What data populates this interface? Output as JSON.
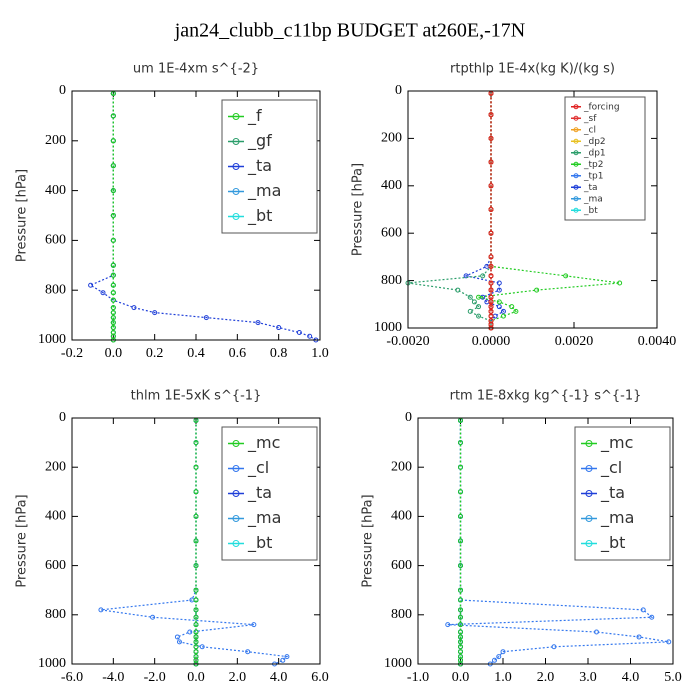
{
  "title": "jan24_clubb_c11bp  BUDGET at260E,-17N",
  "chart_data": [
    {
      "type": "line",
      "title": "um  1E-4xm s^{-2}",
      "y_label": "Pressure [hPa]",
      "y_inverted": true,
      "legend": "upper right",
      "xlim": [
        -0.2,
        1.0
      ],
      "xticks": [
        -0.2,
        {
          "value": 0,
          "label": "0.0"
        },
        0.2,
        0.4,
        0.6,
        0.8,
        {
          "value": 1,
          "label": "1.0"
        }
      ],
      "ylim": [
        0,
        1000
      ],
      "yticks": [
        0,
        200,
        400,
        600,
        800,
        1000
      ],
      "y": [
        10,
        100,
        200,
        300,
        400,
        500,
        600,
        700,
        740,
        780,
        810,
        840,
        870,
        890,
        910,
        930,
        950,
        970,
        985,
        1000
      ],
      "series": [
        {
          "name": "_f",
          "color": "#22cc22",
          "values": [
            0,
            0,
            0,
            0,
            0,
            0,
            0,
            0,
            0,
            0,
            0,
            0,
            0,
            0,
            0,
            0,
            0,
            0,
            0,
            0
          ]
        },
        {
          "name": "_gf",
          "color": "#2a9d6a",
          "values": [
            0,
            0,
            0,
            0,
            0,
            0,
            0,
            0,
            0,
            0,
            0,
            0,
            0,
            0,
            0,
            0,
            0,
            0,
            0,
            0
          ]
        },
        {
          "name": "_ta",
          "color": "#1f3fd8",
          "values": [
            0,
            0,
            0,
            0,
            0,
            0,
            0,
            0,
            0,
            -0.11,
            -0.05,
            0.0,
            0.1,
            0.2,
            0.45,
            0.7,
            0.8,
            0.9,
            0.95,
            0.98
          ]
        },
        {
          "name": "_ma",
          "color": "#3399dd",
          "values": [
            0,
            0,
            0,
            0,
            0,
            0,
            0,
            0,
            0,
            0,
            0,
            0,
            0,
            0,
            0,
            0,
            0,
            0,
            0,
            0
          ]
        },
        {
          "name": "_bt",
          "color": "#22dddd",
          "values": [
            0,
            0,
            0,
            0,
            0,
            0,
            0,
            0,
            0,
            0,
            0,
            0,
            0,
            0,
            0,
            0,
            0,
            0,
            0,
            0
          ]
        }
      ]
    },
    {
      "type": "line",
      "title": "rtpthlp  1E-4x(kg K)/(kg s)",
      "y_label": "Pressure [hPa]",
      "y_inverted": true,
      "legend": "upper right",
      "xlim": [
        -0.002,
        0.004
      ],
      "xticks": [
        {
          "value": -0.002,
          "label": "-0.0020"
        },
        {
          "value": 0,
          "label": "0.0000"
        },
        {
          "value": 0.002,
          "label": "0.0020"
        },
        {
          "value": 0.004,
          "label": "0.0040"
        }
      ],
      "ylim": [
        0,
        1000
      ],
      "yticks": [
        0,
        200,
        400,
        600,
        800,
        1000
      ],
      "y": [
        10,
        100,
        200,
        300,
        400,
        500,
        600,
        700,
        740,
        780,
        810,
        840,
        870,
        890,
        910,
        930,
        950,
        970,
        985,
        1000
      ],
      "series": [
        {
          "name": "_forcing",
          "color": "#e02020",
          "values": [
            0,
            0,
            0,
            0,
            0,
            0,
            0,
            0,
            0,
            0,
            0,
            0,
            0,
            0,
            0,
            0,
            0,
            0,
            0,
            0
          ]
        },
        {
          "name": "_sf",
          "color": "#e03030",
          "values": [
            0,
            0,
            0,
            0,
            0,
            0,
            0,
            0,
            0,
            0,
            0,
            0,
            0,
            0,
            0,
            0,
            0,
            0,
            0,
            0
          ]
        },
        {
          "name": "_cl",
          "color": "#f0a020",
          "values": [
            0,
            0,
            0,
            0,
            0,
            0,
            0,
            0,
            0,
            0,
            0,
            0,
            0,
            0,
            0,
            0,
            0,
            0,
            0,
            0
          ]
        },
        {
          "name": "_dp2",
          "color": "#e8c020",
          "values": [
            0,
            0,
            0,
            0,
            0,
            0,
            0,
            0,
            0,
            0,
            0,
            0,
            0,
            0,
            0,
            0,
            0,
            0,
            0,
            0
          ]
        },
        {
          "name": "_dp1",
          "color": "#2a9d6a",
          "values": [
            0,
            0,
            0,
            0,
            0,
            0,
            0,
            0,
            0,
            -0.0002,
            -0.002,
            -0.0008,
            -0.0005,
            -0.0004,
            -0.0003,
            -0.0005,
            -0.0003,
            0,
            0,
            0
          ]
        },
        {
          "name": "_tp2",
          "color": "#22cc22",
          "values": [
            0,
            0,
            0,
            0,
            0,
            0,
            0,
            0,
            0,
            0.0018,
            0.0031,
            0.0011,
            -0.0003,
            0.0002,
            0.0005,
            0.0006,
            0.0003,
            0,
            0,
            0
          ]
        },
        {
          "name": "_tp1",
          "color": "#3377ee",
          "values": [
            0,
            0,
            0,
            0,
            0,
            0,
            0,
            0,
            0,
            0,
            0,
            0,
            0,
            0,
            0,
            0,
            0,
            0,
            0,
            0
          ]
        },
        {
          "name": "_ta",
          "color": "#1f3fd8",
          "values": [
            0,
            0,
            0,
            0,
            0,
            0,
            0,
            0,
            -0.0001,
            -0.0006,
            0.0002,
            0.0002,
            -0.0002,
            -0.0001,
            0.0002,
            0.0003,
            0.0001,
            0,
            0,
            0
          ]
        },
        {
          "name": "_ma",
          "color": "#3399dd",
          "values": [
            0,
            0,
            0,
            0,
            0,
            0,
            0,
            0,
            0,
            0,
            0,
            0,
            0,
            0,
            0,
            0,
            0,
            0,
            0,
            0
          ]
        },
        {
          "name": "_bt",
          "color": "#22dddd",
          "values": [
            0,
            0,
            0,
            0,
            0,
            0,
            0,
            0,
            0,
            0,
            0,
            0,
            0,
            0,
            0,
            0,
            0,
            0,
            0,
            0
          ]
        }
      ]
    },
    {
      "type": "line",
      "title": "thlm  1E-5xK s^{-1}",
      "y_label": "Pressure [hPa]",
      "y_inverted": true,
      "legend": "upper right",
      "xlim": [
        -6,
        6
      ],
      "xticks": [
        {
          "value": -6,
          "label": "-6.0"
        },
        {
          "value": -4,
          "label": "-4.0"
        },
        {
          "value": -2,
          "label": "-2.0"
        },
        {
          "value": 0,
          "label": "0.0"
        },
        {
          "value": 2,
          "label": "2.0"
        },
        {
          "value": 4,
          "label": "4.0"
        },
        {
          "value": 6,
          "label": "6.0"
        }
      ],
      "ylim": [
        0,
        1000
      ],
      "yticks": [
        0,
        200,
        400,
        600,
        800,
        1000
      ],
      "y": [
        10,
        100,
        200,
        300,
        400,
        500,
        600,
        700,
        740,
        780,
        810,
        840,
        870,
        890,
        910,
        930,
        950,
        970,
        985,
        1000
      ],
      "series": [
        {
          "name": "_mc",
          "color": "#22cc22",
          "values": [
            0,
            0,
            0,
            0,
            0,
            0,
            0,
            0,
            0,
            0,
            0,
            0,
            0,
            0,
            0,
            0,
            0,
            0,
            0,
            0
          ]
        },
        {
          "name": "_cl",
          "color": "#3377ee",
          "values": [
            0,
            0,
            0,
            0,
            0,
            0,
            0,
            0,
            -0.2,
            -4.6,
            -2.1,
            2.8,
            -0.3,
            -0.9,
            -0.8,
            0.3,
            2.5,
            4.4,
            4.2,
            3.8
          ]
        },
        {
          "name": "_ta",
          "color": "#1f3fd8",
          "values": [
            0,
            0,
            0,
            0,
            0,
            0,
            0,
            0,
            0,
            0,
            0,
            0,
            0,
            0,
            0,
            0,
            0,
            0,
            0,
            0
          ]
        },
        {
          "name": "_ma",
          "color": "#3399dd",
          "values": [
            0,
            0,
            0,
            0,
            0,
            0,
            0,
            0,
            0,
            0,
            0,
            0,
            0,
            0,
            0,
            0,
            0,
            0,
            0,
            0
          ]
        },
        {
          "name": "_bt",
          "color": "#22dddd",
          "values": [
            0,
            0,
            0,
            0,
            0,
            0,
            0,
            0,
            0,
            0,
            0,
            0,
            0,
            0,
            0,
            0,
            0,
            0,
            0,
            0
          ]
        }
      ]
    },
    {
      "type": "line",
      "title": "rtm  1E-8xkg kg^{-1} s^{-1}",
      "y_label": "Pressure [hPa]",
      "y_inverted": true,
      "legend": "upper right",
      "xlim": [
        -1,
        5
      ],
      "xticks": [
        {
          "value": -1,
          "label": "-1.0"
        },
        {
          "value": 0,
          "label": "0.0"
        },
        {
          "value": 1,
          "label": "1.0"
        },
        {
          "value": 2,
          "label": "2.0"
        },
        {
          "value": 3,
          "label": "3.0"
        },
        {
          "value": 4,
          "label": "4.0"
        },
        {
          "value": 5,
          "label": "5.0"
        }
      ],
      "ylim": [
        0,
        1000
      ],
      "yticks": [
        0,
        200,
        400,
        600,
        800,
        1000
      ],
      "y": [
        10,
        100,
        200,
        300,
        400,
        500,
        600,
        700,
        740,
        780,
        810,
        840,
        870,
        890,
        910,
        930,
        950,
        970,
        985,
        1000
      ],
      "series": [
        {
          "name": "_mc",
          "color": "#22cc22",
          "values": [
            0,
            0,
            0,
            0,
            0,
            0,
            0,
            0,
            0,
            0,
            0,
            0,
            0,
            0,
            0,
            0,
            0,
            0,
            0,
            0
          ]
        },
        {
          "name": "_cl",
          "color": "#3377ee",
          "values": [
            0,
            0,
            0,
            0,
            0,
            0,
            0,
            0,
            0,
            4.3,
            4.5,
            -0.3,
            3.2,
            4.2,
            4.9,
            2.2,
            1.0,
            0.9,
            0.8,
            0.7
          ]
        },
        {
          "name": "_ta",
          "color": "#1f3fd8",
          "values": [
            0,
            0,
            0,
            0,
            0,
            0,
            0,
            0,
            0,
            0,
            0,
            0,
            0,
            0,
            0,
            0,
            0,
            0,
            0,
            0
          ]
        },
        {
          "name": "_ma",
          "color": "#3399dd",
          "values": [
            0,
            0,
            0,
            0,
            0,
            0,
            0,
            0,
            0,
            0,
            0,
            0,
            0,
            0,
            0,
            0,
            0,
            0,
            0,
            0
          ]
        },
        {
          "name": "_bt",
          "color": "#22dddd",
          "values": [
            0,
            0,
            0,
            0,
            0,
            0,
            0,
            0,
            0,
            0,
            0,
            0,
            0,
            0,
            0,
            0,
            0,
            0,
            0,
            0
          ]
        }
      ]
    }
  ]
}
